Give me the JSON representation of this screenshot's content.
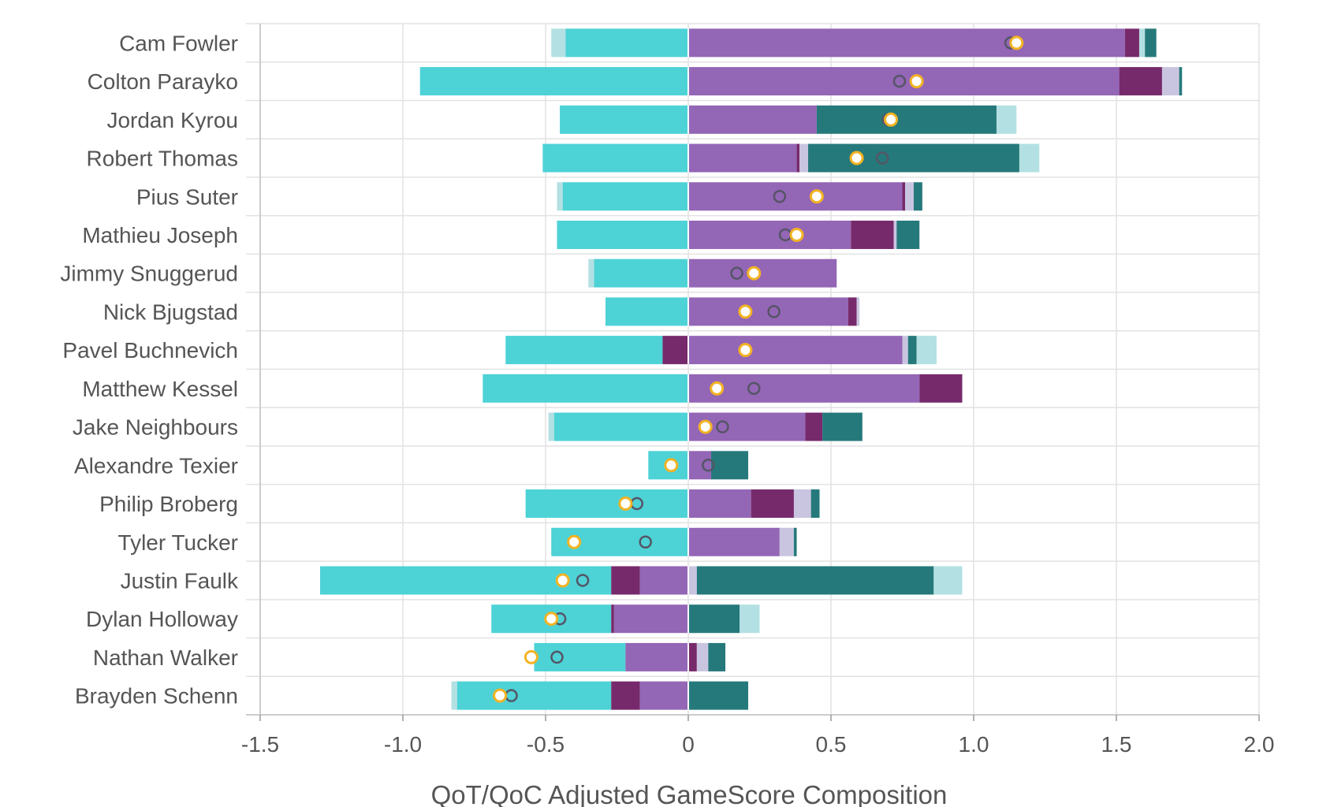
{
  "chart_data": {
    "type": "bar",
    "subtype": "diverging-stacked-horizontal",
    "xlabel": "QoT/QoC Adjusted GameScore Composition",
    "xlim": [
      -1.5,
      2.0
    ],
    "xticks": [
      -1.5,
      -1.0,
      -0.5,
      0,
      0.5,
      1.0,
      1.5,
      2.0
    ],
    "xtick_labels": [
      "-1.5",
      "-1.0",
      "-0.5",
      "0",
      "0.5",
      "1.0",
      "1.5",
      "2.0"
    ],
    "grid": true,
    "colors": {
      "cyan": "#4dd2d6",
      "pale_cyan": "#b3e0e3",
      "purple": "#9466b6",
      "plum": "#772a6b",
      "lavender": "#c9c5e0",
      "teal": "#26797b",
      "marker_open": "#555566",
      "marker_fill": "#ffffff",
      "marker_gold": "#f2b323",
      "grid": "#e2e2e2",
      "zero_line": "#ffffff"
    },
    "players": [
      {
        "name": "Cam Fowler",
        "segments": [
          {
            "from": -0.48,
            "to": -0.43,
            "color": "pale_cyan"
          },
          {
            "from": -0.43,
            "to": 0,
            "color": "cyan"
          },
          {
            "from": 0,
            "to": 1.53,
            "color": "purple"
          },
          {
            "from": 1.53,
            "to": 1.58,
            "color": "plum"
          },
          {
            "from": 1.58,
            "to": 1.6,
            "color": "pale_cyan"
          },
          {
            "from": 1.6,
            "to": 1.64,
            "color": "teal"
          }
        ],
        "open_marker": 1.13,
        "gold_marker": 1.15
      },
      {
        "name": "Colton Parayko",
        "segments": [
          {
            "from": -0.94,
            "to": 0,
            "color": "cyan"
          },
          {
            "from": 0,
            "to": 1.51,
            "color": "purple"
          },
          {
            "from": 1.51,
            "to": 1.66,
            "color": "plum"
          },
          {
            "from": 1.66,
            "to": 1.72,
            "color": "lavender"
          },
          {
            "from": 1.72,
            "to": 1.73,
            "color": "teal"
          }
        ],
        "open_marker": 0.74,
        "gold_marker": 0.8
      },
      {
        "name": "Jordan Kyrou",
        "segments": [
          {
            "from": -0.45,
            "to": 0,
            "color": "cyan"
          },
          {
            "from": 0,
            "to": 0.45,
            "color": "purple"
          },
          {
            "from": 0.45,
            "to": 1.08,
            "color": "teal"
          },
          {
            "from": 1.08,
            "to": 1.15,
            "color": "pale_cyan"
          }
        ],
        "open_marker": 0.7,
        "gold_marker": 0.71
      },
      {
        "name": "Robert Thomas",
        "segments": [
          {
            "from": -0.51,
            "to": 0,
            "color": "cyan"
          },
          {
            "from": 0,
            "to": 0.38,
            "color": "purple"
          },
          {
            "from": 0.38,
            "to": 0.39,
            "color": "plum"
          },
          {
            "from": 0.39,
            "to": 0.42,
            "color": "lavender"
          },
          {
            "from": 0.42,
            "to": 1.16,
            "color": "teal"
          },
          {
            "from": 1.16,
            "to": 1.23,
            "color": "pale_cyan"
          }
        ],
        "open_marker": 0.68,
        "gold_marker": 0.59
      },
      {
        "name": "Pius Suter",
        "segments": [
          {
            "from": -0.46,
            "to": -0.44,
            "color": "pale_cyan"
          },
          {
            "from": -0.44,
            "to": 0,
            "color": "cyan"
          },
          {
            "from": 0,
            "to": 0.75,
            "color": "purple"
          },
          {
            "from": 0.75,
            "to": 0.76,
            "color": "plum"
          },
          {
            "from": 0.76,
            "to": 0.79,
            "color": "lavender"
          },
          {
            "from": 0.79,
            "to": 0.82,
            "color": "teal"
          }
        ],
        "open_marker": 0.32,
        "gold_marker": 0.45
      },
      {
        "name": "Mathieu Joseph",
        "segments": [
          {
            "from": -0.46,
            "to": 0,
            "color": "cyan"
          },
          {
            "from": 0,
            "to": 0.57,
            "color": "purple"
          },
          {
            "from": 0.57,
            "to": 0.72,
            "color": "plum"
          },
          {
            "from": 0.72,
            "to": 0.73,
            "color": "lavender"
          },
          {
            "from": 0.73,
            "to": 0.81,
            "color": "teal"
          }
        ],
        "open_marker": 0.34,
        "gold_marker": 0.38
      },
      {
        "name": "Jimmy Snuggerud",
        "segments": [
          {
            "from": -0.35,
            "to": -0.33,
            "color": "pale_cyan"
          },
          {
            "from": -0.33,
            "to": 0,
            "color": "cyan"
          },
          {
            "from": 0,
            "to": 0.52,
            "color": "purple"
          }
        ],
        "open_marker": 0.17,
        "gold_marker": 0.23
      },
      {
        "name": "Nick Bjugstad",
        "segments": [
          {
            "from": -0.29,
            "to": 0,
            "color": "cyan"
          },
          {
            "from": 0,
            "to": 0.56,
            "color": "purple"
          },
          {
            "from": 0.56,
            "to": 0.59,
            "color": "plum"
          },
          {
            "from": 0.59,
            "to": 0.6,
            "color": "lavender"
          }
        ],
        "open_marker": 0.3,
        "gold_marker": 0.2
      },
      {
        "name": "Pavel Buchnevich",
        "segments": [
          {
            "from": -0.64,
            "to": -0.09,
            "color": "cyan"
          },
          {
            "from": -0.09,
            "to": 0,
            "color": "plum"
          },
          {
            "from": 0,
            "to": 0.75,
            "color": "purple"
          },
          {
            "from": 0.75,
            "to": 0.77,
            "color": "lavender"
          },
          {
            "from": 0.77,
            "to": 0.8,
            "color": "teal"
          },
          {
            "from": 0.8,
            "to": 0.87,
            "color": "pale_cyan"
          }
        ],
        "gold_marker": 0.2
      },
      {
        "name": "Matthew Kessel",
        "segments": [
          {
            "from": -0.72,
            "to": 0,
            "color": "cyan"
          },
          {
            "from": 0,
            "to": 0.81,
            "color": "purple"
          },
          {
            "from": 0.81,
            "to": 0.96,
            "color": "plum"
          }
        ],
        "open_marker": 0.23,
        "gold_marker": 0.1
      },
      {
        "name": "Jake Neighbours",
        "segments": [
          {
            "from": -0.49,
            "to": -0.47,
            "color": "pale_cyan"
          },
          {
            "from": -0.47,
            "to": 0,
            "color": "cyan"
          },
          {
            "from": 0,
            "to": 0.41,
            "color": "purple"
          },
          {
            "from": 0.41,
            "to": 0.47,
            "color": "plum"
          },
          {
            "from": 0.47,
            "to": 0.61,
            "color": "teal"
          }
        ],
        "open_marker": 0.12,
        "gold_marker": 0.06
      },
      {
        "name": "Alexandre Texier",
        "segments": [
          {
            "from": -0.14,
            "to": 0,
            "color": "cyan"
          },
          {
            "from": 0,
            "to": 0.08,
            "color": "purple"
          },
          {
            "from": 0.08,
            "to": 0.21,
            "color": "teal"
          }
        ],
        "open_marker": 0.07,
        "gold_marker": -0.06
      },
      {
        "name": "Philip Broberg",
        "segments": [
          {
            "from": -0.57,
            "to": 0,
            "color": "cyan"
          },
          {
            "from": 0,
            "to": 0.22,
            "color": "purple"
          },
          {
            "from": 0.22,
            "to": 0.37,
            "color": "plum"
          },
          {
            "from": 0.37,
            "to": 0.43,
            "color": "lavender"
          },
          {
            "from": 0.43,
            "to": 0.46,
            "color": "teal"
          }
        ],
        "open_marker": -0.18,
        "gold_marker": -0.22
      },
      {
        "name": "Tyler Tucker",
        "segments": [
          {
            "from": -0.48,
            "to": 0,
            "color": "cyan"
          },
          {
            "from": 0,
            "to": 0.32,
            "color": "purple"
          },
          {
            "from": 0.32,
            "to": 0.37,
            "color": "lavender"
          },
          {
            "from": 0.37,
            "to": 0.38,
            "color": "teal"
          }
        ],
        "open_marker": -0.15,
        "gold_marker": -0.4
      },
      {
        "name": "Justin Faulk",
        "segments": [
          {
            "from": -1.29,
            "to": -0.27,
            "color": "cyan"
          },
          {
            "from": -0.27,
            "to": -0.17,
            "color": "plum"
          },
          {
            "from": -0.17,
            "to": 0,
            "color": "purple"
          },
          {
            "from": 0,
            "to": 0.03,
            "color": "lavender"
          },
          {
            "from": 0.03,
            "to": 0.86,
            "color": "teal"
          },
          {
            "from": 0.86,
            "to": 0.96,
            "color": "pale_cyan"
          }
        ],
        "open_marker": -0.37,
        "gold_marker": -0.44
      },
      {
        "name": "Dylan Holloway",
        "segments": [
          {
            "from": -0.69,
            "to": -0.27,
            "color": "cyan"
          },
          {
            "from": -0.27,
            "to": -0.26,
            "color": "plum"
          },
          {
            "from": -0.26,
            "to": 0,
            "color": "purple"
          },
          {
            "from": 0,
            "to": 0.18,
            "color": "teal"
          },
          {
            "from": 0.18,
            "to": 0.25,
            "color": "pale_cyan"
          }
        ],
        "open_marker": -0.45,
        "gold_marker": -0.48
      },
      {
        "name": "Nathan Walker",
        "segments": [
          {
            "from": -0.54,
            "to": -0.22,
            "color": "cyan"
          },
          {
            "from": -0.22,
            "to": 0,
            "color": "purple"
          },
          {
            "from": 0,
            "to": 0.03,
            "color": "plum"
          },
          {
            "from": 0.03,
            "to": 0.07,
            "color": "lavender"
          },
          {
            "from": 0.07,
            "to": 0.13,
            "color": "teal"
          }
        ],
        "open_marker": -0.46,
        "gold_marker": -0.55
      },
      {
        "name": "Brayden Schenn",
        "segments": [
          {
            "from": -0.83,
            "to": -0.81,
            "color": "pale_cyan"
          },
          {
            "from": -0.81,
            "to": -0.27,
            "color": "cyan"
          },
          {
            "from": -0.27,
            "to": -0.17,
            "color": "plum"
          },
          {
            "from": -0.17,
            "to": 0,
            "color": "purple"
          },
          {
            "from": 0,
            "to": 0.21,
            "color": "teal"
          }
        ],
        "open_marker": -0.62,
        "gold_marker": -0.66
      }
    ]
  }
}
